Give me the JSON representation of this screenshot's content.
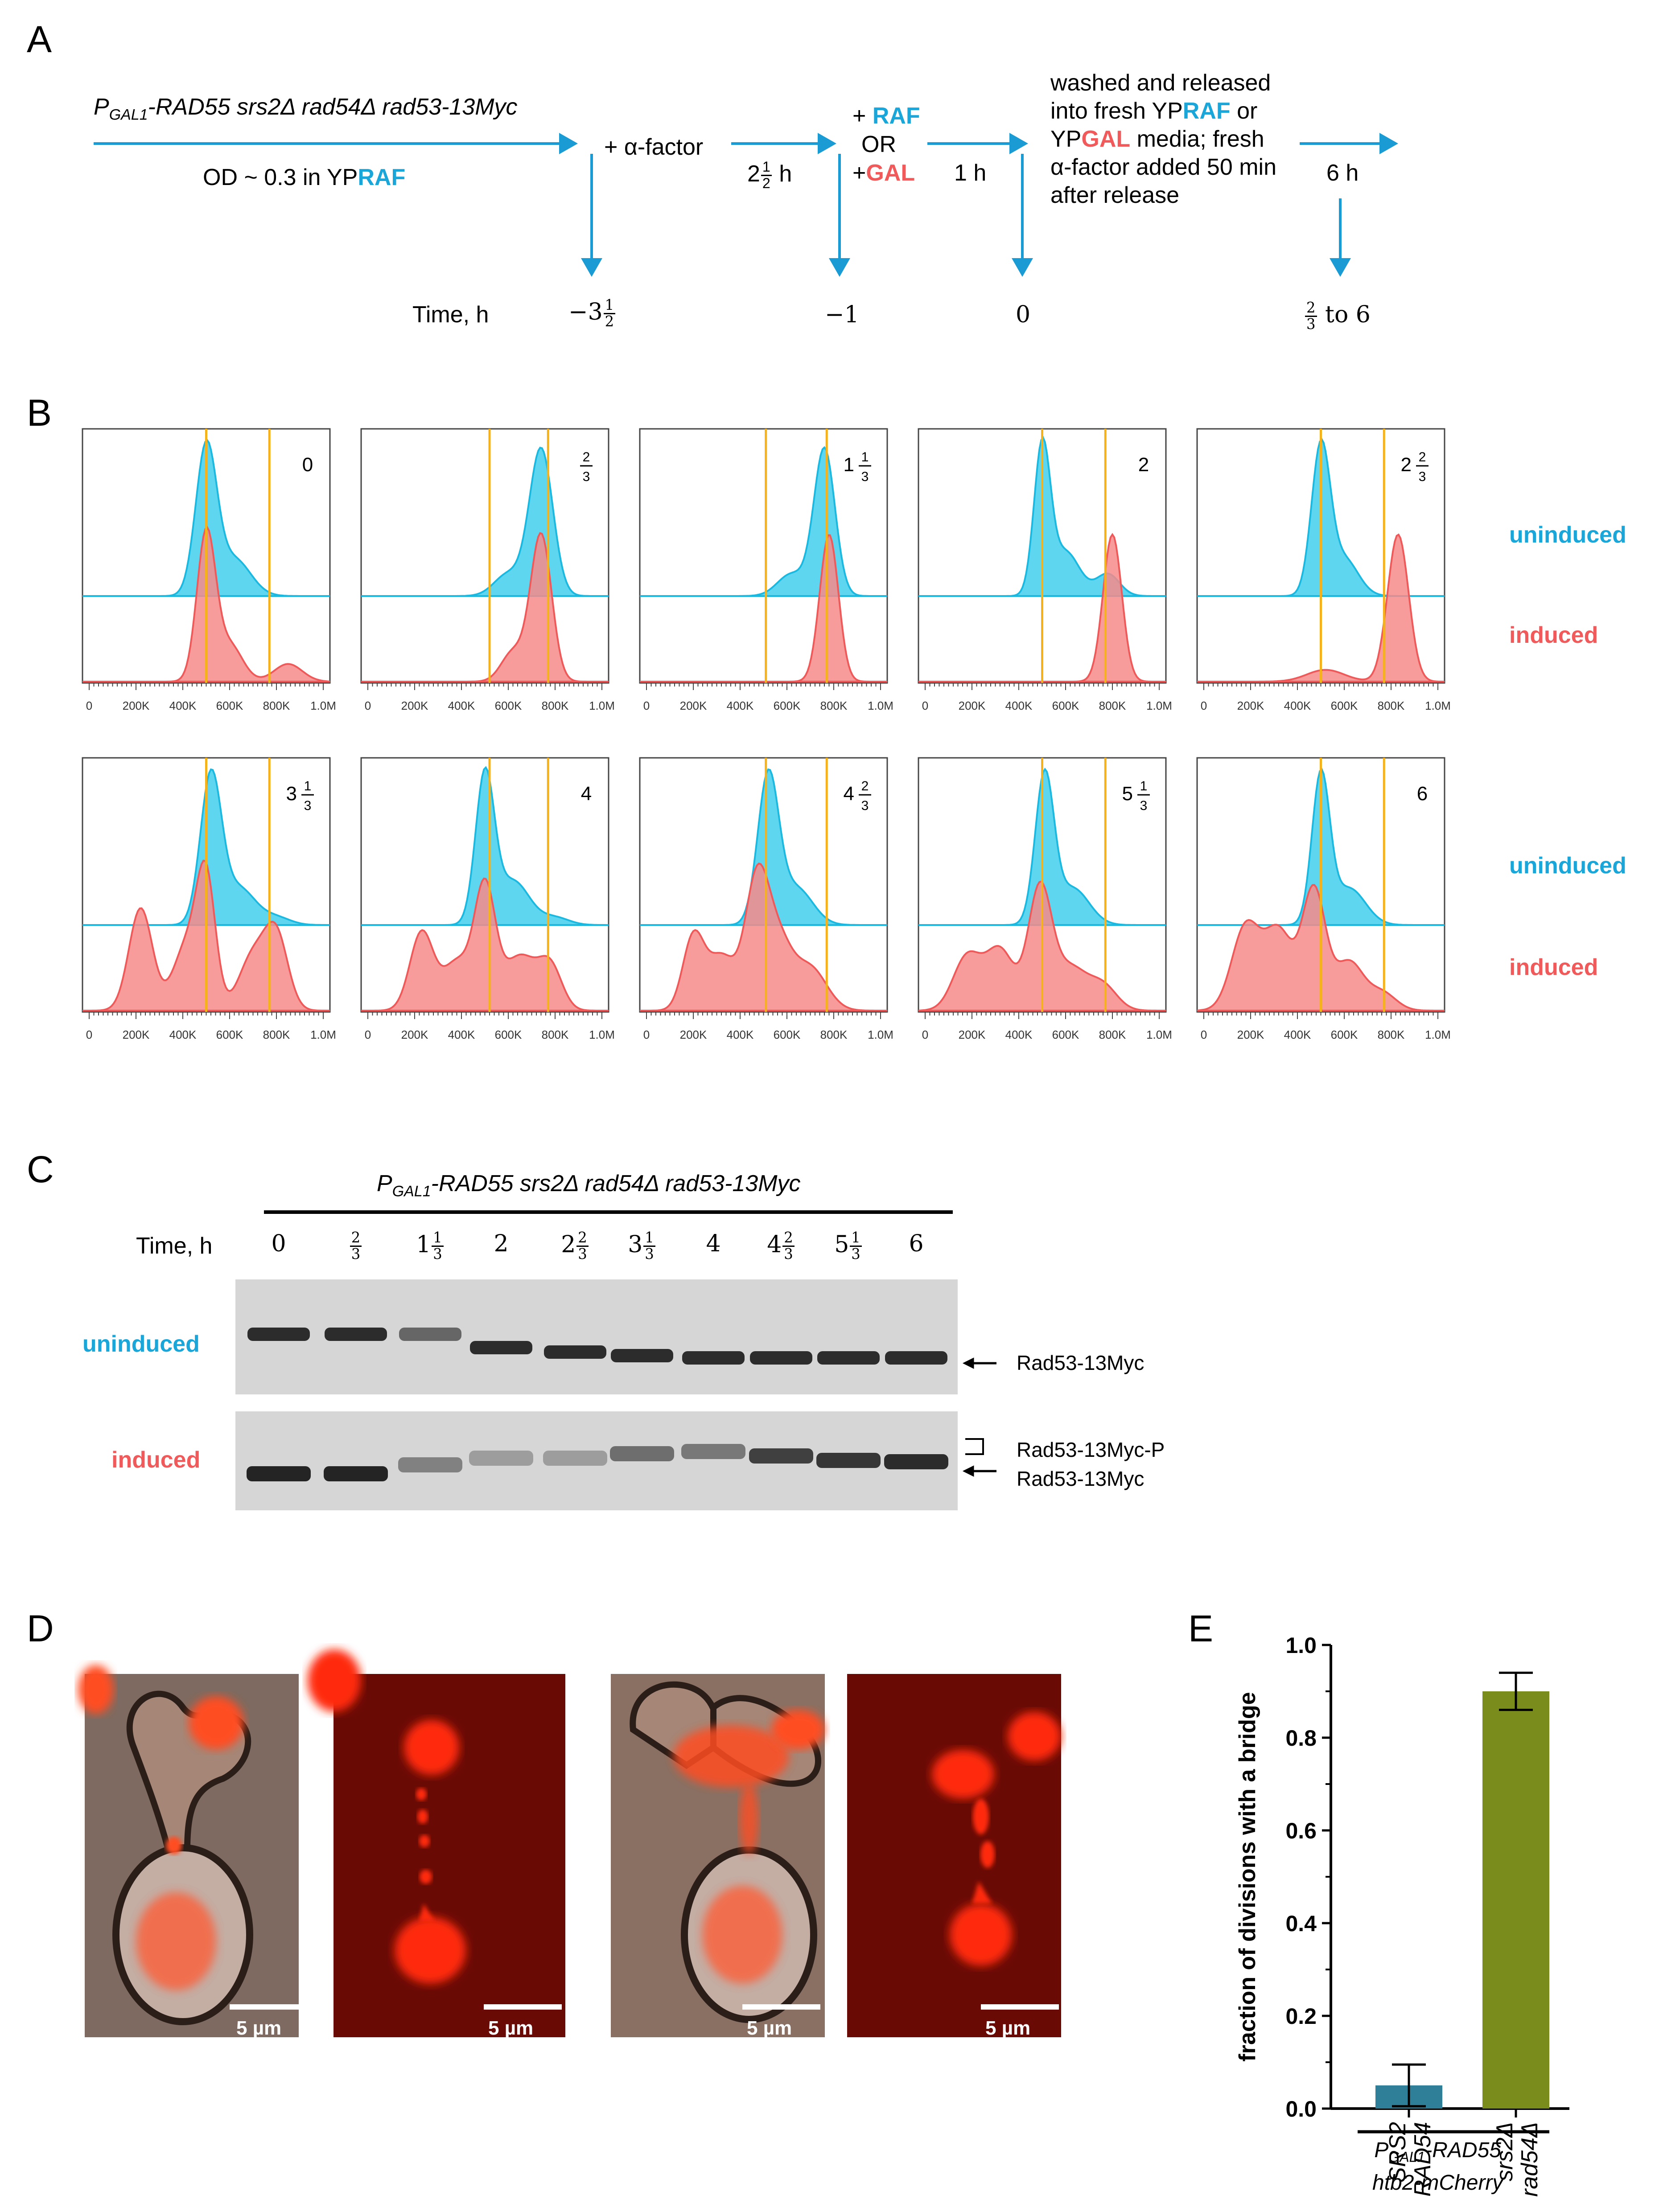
{
  "panelA": {
    "label": "A",
    "genotype_prefix": "P",
    "genotype_sub": "GAL1",
    "genotype_rest": "-RAD55 srs2Δ rad54Δ rad53-13Myc",
    "od_text": "OD ~ 0.3 in YP",
    "od_raf": "RAF",
    "alpha_factor": "+ α-factor",
    "step2_time_whole": "2",
    "step2_time_num": "1",
    "step2_time_den": "2",
    "step2_time_unit": "h",
    "plus_raf_prefix": "+ ",
    "raf": "RAF",
    "or": "OR",
    "plus_gal_prefix": "+",
    "gal": "GAL",
    "step3_time": "1 h",
    "release_line1": "washed and released",
    "release_line2_a": "into fresh YP",
    "release_line2_b": "RAF",
    "release_line2_c": " or",
    "release_line3_a": "YP",
    "release_line3_b": "GAL",
    "release_line3_c": " media; fresh",
    "release_line4": "α-factor added 50 min",
    "release_line5": "after release",
    "step4_time": "6 h",
    "time_label": "Time, h",
    "t1_prefix": "−3",
    "t1_num": "1",
    "t1_den": "2",
    "t2": "−1",
    "t3": "0",
    "t4_num": "2",
    "t4_den": "3",
    "t4_rest": " to 6"
  },
  "panelB": {
    "label": "B",
    "uninduced": "uninduced",
    "induced": "induced",
    "xticks": [
      "0",
      "200K",
      "400K",
      "600K",
      "800K",
      "1.0M"
    ],
    "row1": [
      {
        "whole": "0",
        "num": "",
        "den": ""
      },
      {
        "whole": "",
        "num": "2",
        "den": "3"
      },
      {
        "whole": "1",
        "num": "1",
        "den": "3"
      },
      {
        "whole": "2",
        "num": "",
        "den": ""
      },
      {
        "whole": "2",
        "num": "2",
        "den": "3"
      }
    ],
    "row2": [
      {
        "whole": "3",
        "num": "1",
        "den": "3"
      },
      {
        "whole": "4",
        "num": "",
        "den": ""
      },
      {
        "whole": "4",
        "num": "2",
        "den": "3"
      },
      {
        "whole": "5",
        "num": "1",
        "den": "3"
      },
      {
        "whole": "6",
        "num": "",
        "den": ""
      }
    ]
  },
  "panelC": {
    "label": "C",
    "genotype_prefix": "P",
    "genotype_sub": "GAL1",
    "genotype_rest": "-RAD55 srs2Δ rad54Δ rad53-13Myc",
    "time_label": "Time, h",
    "lanes": [
      {
        "whole": "0",
        "num": "",
        "den": ""
      },
      {
        "whole": "",
        "num": "2",
        "den": "3"
      },
      {
        "whole": "1",
        "num": "1",
        "den": "3"
      },
      {
        "whole": "2",
        "num": "",
        "den": ""
      },
      {
        "whole": "2",
        "num": "2",
        "den": "3"
      },
      {
        "whole": "3",
        "num": "1",
        "den": "3"
      },
      {
        "whole": "4",
        "num": "",
        "den": ""
      },
      {
        "whole": "4",
        "num": "2",
        "den": "3"
      },
      {
        "whole": "5",
        "num": "1",
        "den": "3"
      },
      {
        "whole": "6",
        "num": "",
        "den": ""
      }
    ],
    "uninduced": "uninduced",
    "induced": "induced",
    "band_top": "Rad53-13Myc",
    "band_p": "Rad53-13Myc-P",
    "band_bottom": "Rad53-13Myc"
  },
  "panelD": {
    "label": "D",
    "scale": [
      "5 µm",
      "5 µm",
      "5 µm",
      "5 µm"
    ]
  },
  "panelE": {
    "label": "E",
    "genotype_prefix": "P",
    "genotype_sub": "GAL1",
    "genotype_rest": "-RAD55",
    "genotype_line2": "htb2-mCherry"
  },
  "chart_data": {
    "type": "bar",
    "ylabel": "fraction of divisions with a bridge",
    "xlabel": "",
    "ylim": [
      0,
      1.0
    ],
    "yticks": [
      "0.0",
      "0.2",
      "0.4",
      "0.6",
      "0.8",
      "1.0"
    ],
    "categories": [
      {
        "line1": "SRS2",
        "line2": "RAD54"
      },
      {
        "line1": "srs2Δ",
        "line2": "rad54Δ"
      }
    ],
    "values": [
      0.05,
      0.9
    ],
    "errors": [
      0.045,
      0.04
    ],
    "colors": [
      "#2f7f99",
      "#7a8c1c"
    ]
  }
}
